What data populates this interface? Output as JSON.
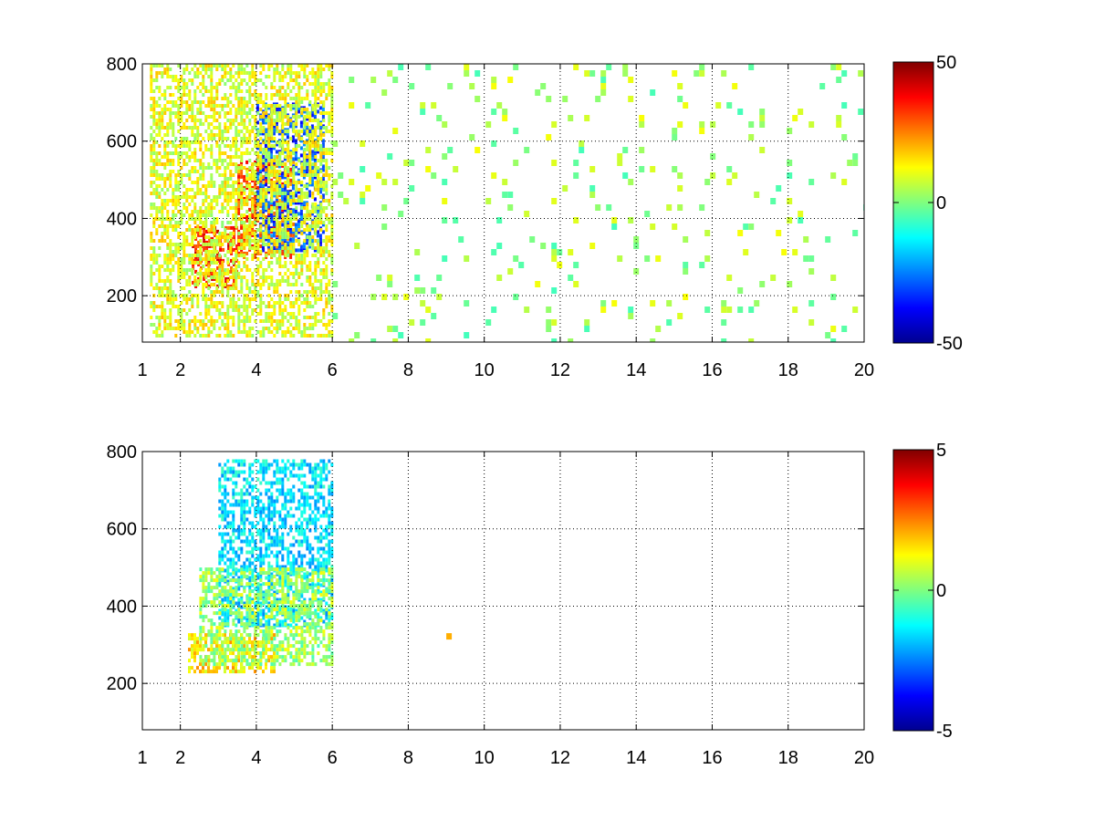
{
  "chart_data": [
    {
      "type": "heatmap",
      "title": "",
      "xlabel": "",
      "ylabel": "",
      "xlim": [
        1,
        20
      ],
      "ylim": [
        80,
        800
      ],
      "x_ticks": [
        1,
        2,
        4,
        6,
        8,
        10,
        12,
        14,
        16,
        18,
        20
      ],
      "y_ticks": [
        200,
        400,
        600,
        800
      ],
      "grid": true,
      "colormap": "jet",
      "clim": [
        -50,
        50
      ],
      "colorbar_ticks": [
        50,
        0,
        -50
      ],
      "colorbar_position": "right",
      "description_of_data_regions": [
        {
          "x": [
            2.3,
            3.5
          ],
          "y": [
            220,
            380
          ],
          "value": 35
        },
        {
          "x": [
            3.5,
            5.0
          ],
          "y": [
            300,
            550
          ],
          "value": 30
        },
        {
          "x": [
            4.0,
            5.8
          ],
          "y": [
            320,
            700
          ],
          "value": -30
        },
        {
          "x": [
            1.2,
            6.0
          ],
          "y": [
            100,
            800
          ],
          "value": 10
        },
        {
          "x": [
            6.0,
            20.0
          ],
          "y": [
            80,
            800
          ],
          "value": 3
        }
      ]
    },
    {
      "type": "heatmap",
      "title": "",
      "xlabel": "",
      "ylabel": "",
      "xlim": [
        1,
        20
      ],
      "ylim": [
        80,
        800
      ],
      "x_ticks": [
        1,
        2,
        4,
        6,
        8,
        10,
        12,
        14,
        16,
        18,
        20
      ],
      "y_ticks": [
        200,
        400,
        600,
        800
      ],
      "grid": true,
      "colormap": "jet",
      "clim": [
        -5,
        5
      ],
      "colorbar_ticks": [
        5,
        0,
        -5
      ],
      "colorbar_position": "right",
      "description_of_data_regions": [
        {
          "x": [
            2.2,
            4.5
          ],
          "y": [
            230,
            330
          ],
          "value": 1.5
        },
        {
          "x": [
            3.0,
            6.0
          ],
          "y": [
            350,
            780
          ],
          "value": -1.5
        },
        {
          "x": [
            2.5,
            6.0
          ],
          "y": [
            250,
            500
          ],
          "value": 0.3
        },
        {
          "x": [
            9.0,
            9.2
          ],
          "y": [
            240,
            330
          ],
          "value": 2
        }
      ]
    }
  ]
}
